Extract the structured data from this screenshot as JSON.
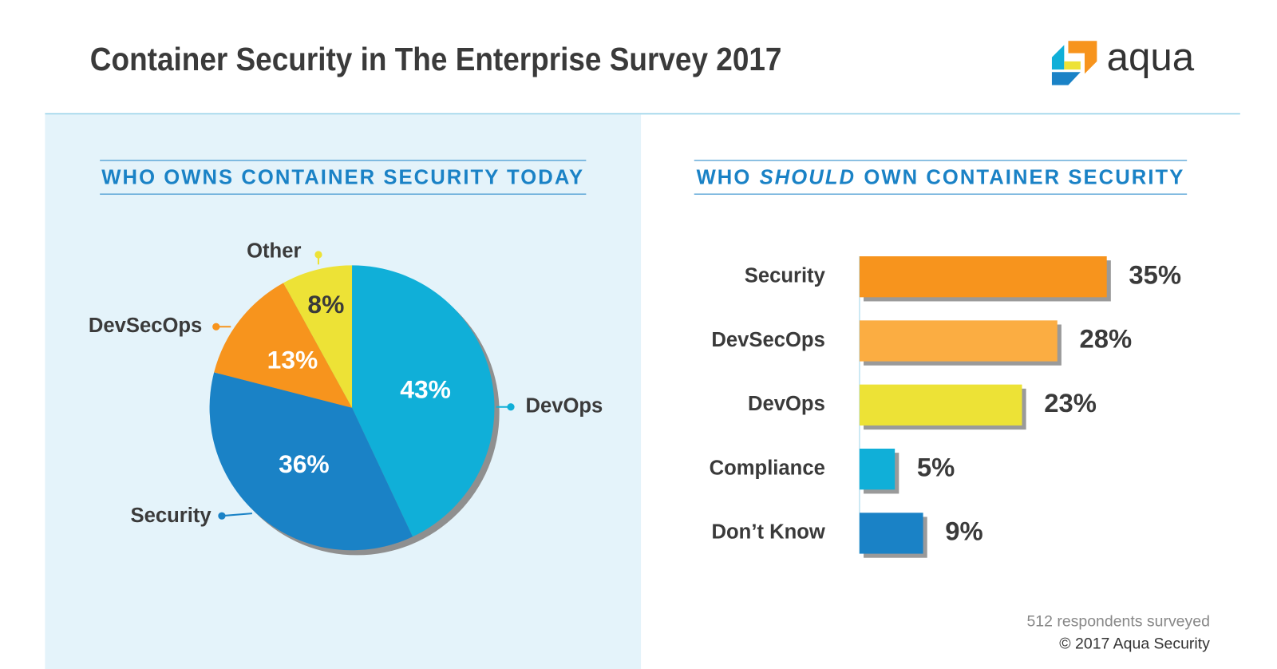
{
  "header": {
    "title": "Container Security in The Enterprise Survey 2017",
    "logo": "aqua"
  },
  "chart_data": [
    {
      "type": "pie",
      "title": "WHO OWNS CONTAINER SECURITY TODAY",
      "categories": [
        "DevOps",
        "Security",
        "DevSecOps",
        "Other"
      ],
      "values": [
        43,
        36,
        13,
        8
      ],
      "value_labels": [
        "43%",
        "36%",
        "13%",
        "8%"
      ],
      "colors": [
        "#10afd8",
        "#1a82c6",
        "#f7941d",
        "#ede236"
      ]
    },
    {
      "type": "bar",
      "orientation": "horizontal",
      "title": [
        "WHO",
        "SHOULD",
        "OWN CONTAINER SECURITY"
      ],
      "categories": [
        "Security",
        "DevSecOps",
        "DevOps",
        "Compliance",
        "Don’t Know"
      ],
      "values": [
        35,
        28,
        23,
        5,
        9
      ],
      "value_labels": [
        "35%",
        "28%",
        "23%",
        "5%",
        "9%"
      ],
      "colors": [
        "#f7941d",
        "#fbad42",
        "#ede236",
        "#10afd8",
        "#1a82c6"
      ]
    }
  ],
  "footer": {
    "note": "512 respondents surveyed",
    "copyright": "© 2017 Aqua Security"
  }
}
